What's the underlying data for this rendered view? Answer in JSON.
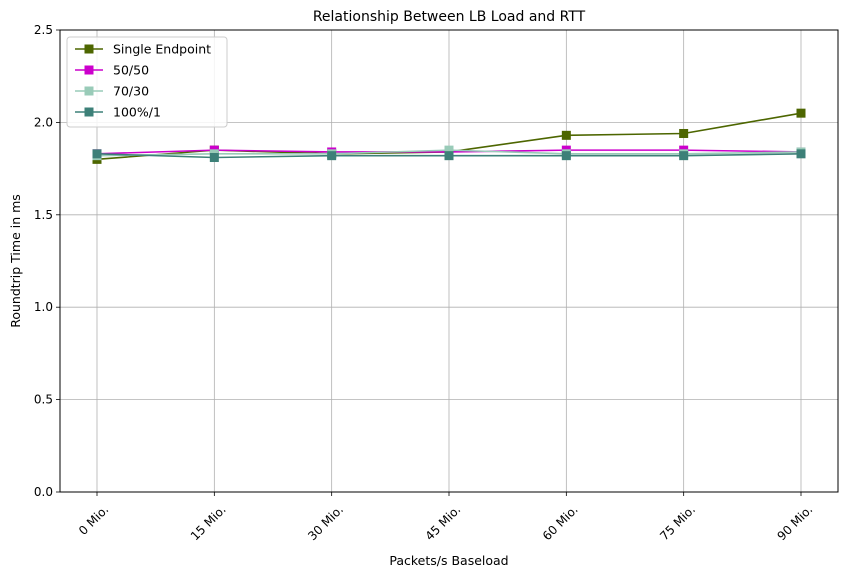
{
  "chart_data": {
    "type": "line",
    "title": "Relationship Between LB Load and RTT",
    "xlabel": "Packets/s Baseload",
    "ylabel": "Roundtrip Time in ms",
    "categories": [
      "0 Mio.",
      "15 Mio.",
      "30 Mio.",
      "45 Mio.",
      "60 Mio.",
      "75 Mio.",
      "90 Mio."
    ],
    "ylim": [
      0,
      2.5
    ],
    "yticks": [
      0.0,
      0.5,
      1.0,
      1.5,
      2.0,
      2.5
    ],
    "ytick_labels": [
      "0.0",
      "0.5",
      "1.0",
      "1.5",
      "2.0",
      "2.5"
    ],
    "grid": true,
    "legend_position": "top-left",
    "marker": "square",
    "series": [
      {
        "name": "Single Endpoint",
        "color": "#4d6600",
        "values": [
          1.8,
          1.85,
          1.83,
          1.84,
          1.93,
          1.94,
          2.05
        ]
      },
      {
        "name": "50/50",
        "color": "#cc00cc",
        "values": [
          1.83,
          1.85,
          1.84,
          1.84,
          1.85,
          1.85,
          1.84
        ]
      },
      {
        "name": "70/30",
        "color": "#99cbb8",
        "values": [
          1.82,
          1.83,
          1.83,
          1.85,
          1.83,
          1.83,
          1.84
        ]
      },
      {
        "name": "100%/1",
        "color": "#3d8078",
        "values": [
          1.83,
          1.81,
          1.82,
          1.82,
          1.82,
          1.82,
          1.83
        ]
      }
    ]
  }
}
